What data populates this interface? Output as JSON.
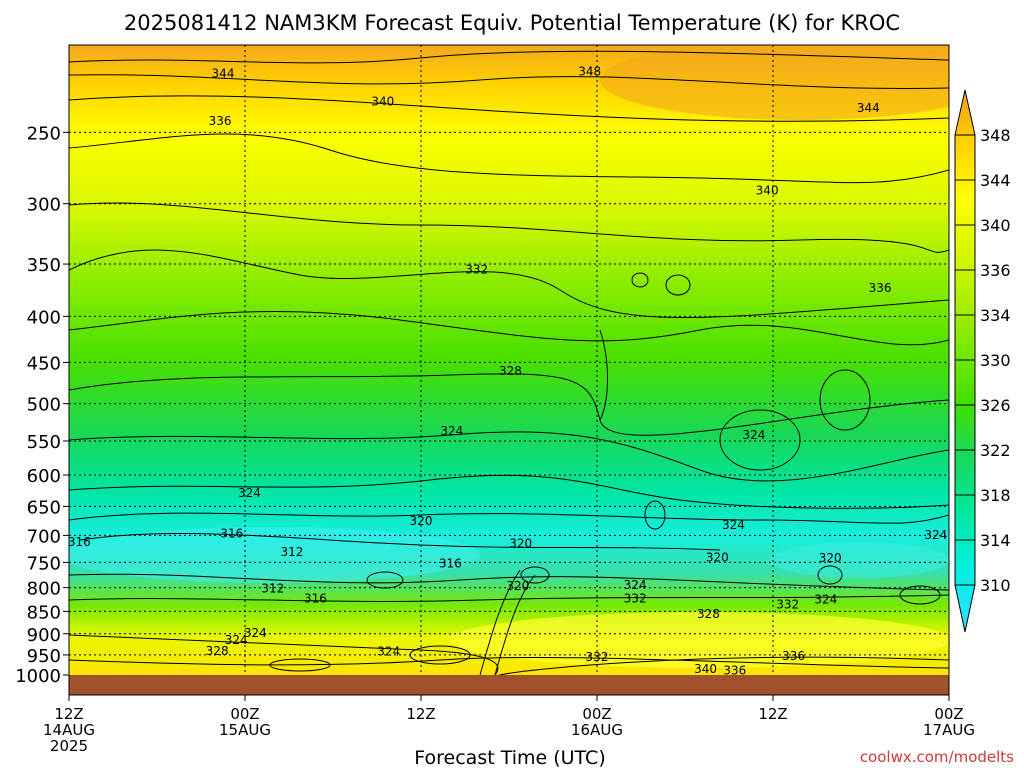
{
  "title": "2025081412 NAM3KM Forecast Equiv. Potential Temperature (K) for KROC",
  "xlabel": "Forecast Time (UTC)",
  "credit": "coolwx.com/modelts",
  "chart_data": {
    "type": "heatmap",
    "title": "2025081412 NAM3KM Forecast Equiv. Potential Temperature (K) for KROC",
    "xlabel": "Forecast Time (UTC)",
    "ylabel": "",
    "x_ticks": [
      {
        "hour": 0,
        "l1": "12Z",
        "l2": "14AUG",
        "l3": "2025"
      },
      {
        "hour": 12,
        "l1": "00Z",
        "l2": "15AUG",
        "l3": ""
      },
      {
        "hour": 24,
        "l1": "12Z",
        "l2": "",
        "l3": ""
      },
      {
        "hour": 36,
        "l1": "00Z",
        "l2": "16AUG",
        "l3": ""
      },
      {
        "hour": 48,
        "l1": "12Z",
        "l2": "",
        "l3": ""
      },
      {
        "hour": 60,
        "l1": "00Z",
        "l2": "17AUG",
        "l3": ""
      }
    ],
    "y_ticks": [
      250,
      300,
      350,
      400,
      450,
      500,
      550,
      600,
      650,
      700,
      750,
      800,
      850,
      900,
      950,
      1000
    ],
    "ylim": [
      200,
      1000
    ],
    "y_scale": "log-pressure (inverted)",
    "grid": true,
    "colorbar": {
      "labels": [
        348,
        344,
        340,
        336,
        334,
        330,
        326,
        322,
        318,
        314,
        310
      ],
      "colors": [
        "#f0a018",
        "#ffd200",
        "#ffff00",
        "#e0f800",
        "#b4f000",
        "#78e800",
        "#40e000",
        "#18d860",
        "#00e8a0",
        "#00f0e0",
        "#30e0ff",
        "#60d8ff"
      ]
    },
    "contour_labels": [
      {
        "v": "344",
        "h": 10.5,
        "p": 215
      },
      {
        "v": "348",
        "h": 35.5,
        "p": 214
      },
      {
        "v": "340",
        "h": 21.4,
        "p": 231
      },
      {
        "v": "344",
        "h": 54.5,
        "p": 235
      },
      {
        "v": "336",
        "h": 10.3,
        "p": 243
      },
      {
        "v": "340",
        "h": 47.6,
        "p": 290
      },
      {
        "v": "332",
        "h": 27.8,
        "p": 355
      },
      {
        "v": "336",
        "h": 55.3,
        "p": 372
      },
      {
        "v": "328",
        "h": 30.1,
        "p": 460
      },
      {
        "v": "324",
        "h": 26.1,
        "p": 536
      },
      {
        "v": "324",
        "h": 46.7,
        "p": 542
      },
      {
        "v": "324",
        "h": 12.3,
        "p": 628
      },
      {
        "v": "320",
        "h": 24.0,
        "p": 675
      },
      {
        "v": "324",
        "h": 45.3,
        "p": 682
      },
      {
        "v": "324",
        "h": 59.1,
        "p": 699
      },
      {
        "v": "316",
        "h": 0.7,
        "p": 712
      },
      {
        "v": "316",
        "h": 11.1,
        "p": 697
      },
      {
        "v": "312",
        "h": 15.2,
        "p": 730
      },
      {
        "v": "320",
        "h": 30.8,
        "p": 715
      },
      {
        "v": "316",
        "h": 26.0,
        "p": 752
      },
      {
        "v": "320",
        "h": 44.2,
        "p": 741
      },
      {
        "v": "320",
        "h": 51.9,
        "p": 742
      },
      {
        "v": "312",
        "h": 13.9,
        "p": 802
      },
      {
        "v": "316",
        "h": 16.8,
        "p": 822
      },
      {
        "v": "320",
        "h": 30.6,
        "p": 797
      },
      {
        "v": "324",
        "h": 38.6,
        "p": 795
      },
      {
        "v": "332",
        "h": 38.6,
        "p": 822
      },
      {
        "v": "328",
        "h": 43.6,
        "p": 856
      },
      {
        "v": "332",
        "h": 49.0,
        "p": 835
      },
      {
        "v": "324",
        "h": 51.6,
        "p": 825
      },
      {
        "v": "324",
        "h": 12.7,
        "p": 898
      },
      {
        "v": "324",
        "h": 11.4,
        "p": 915
      },
      {
        "v": "328",
        "h": 10.1,
        "p": 940
      },
      {
        "v": "324",
        "h": 21.8,
        "p": 942
      },
      {
        "v": "332",
        "h": 36.0,
        "p": 955
      },
      {
        "v": "336",
        "h": 49.4,
        "p": 953
      },
      {
        "v": "340",
        "h": 43.4,
        "p": 985
      },
      {
        "v": "336",
        "h": 45.4,
        "p": 989
      }
    ]
  }
}
